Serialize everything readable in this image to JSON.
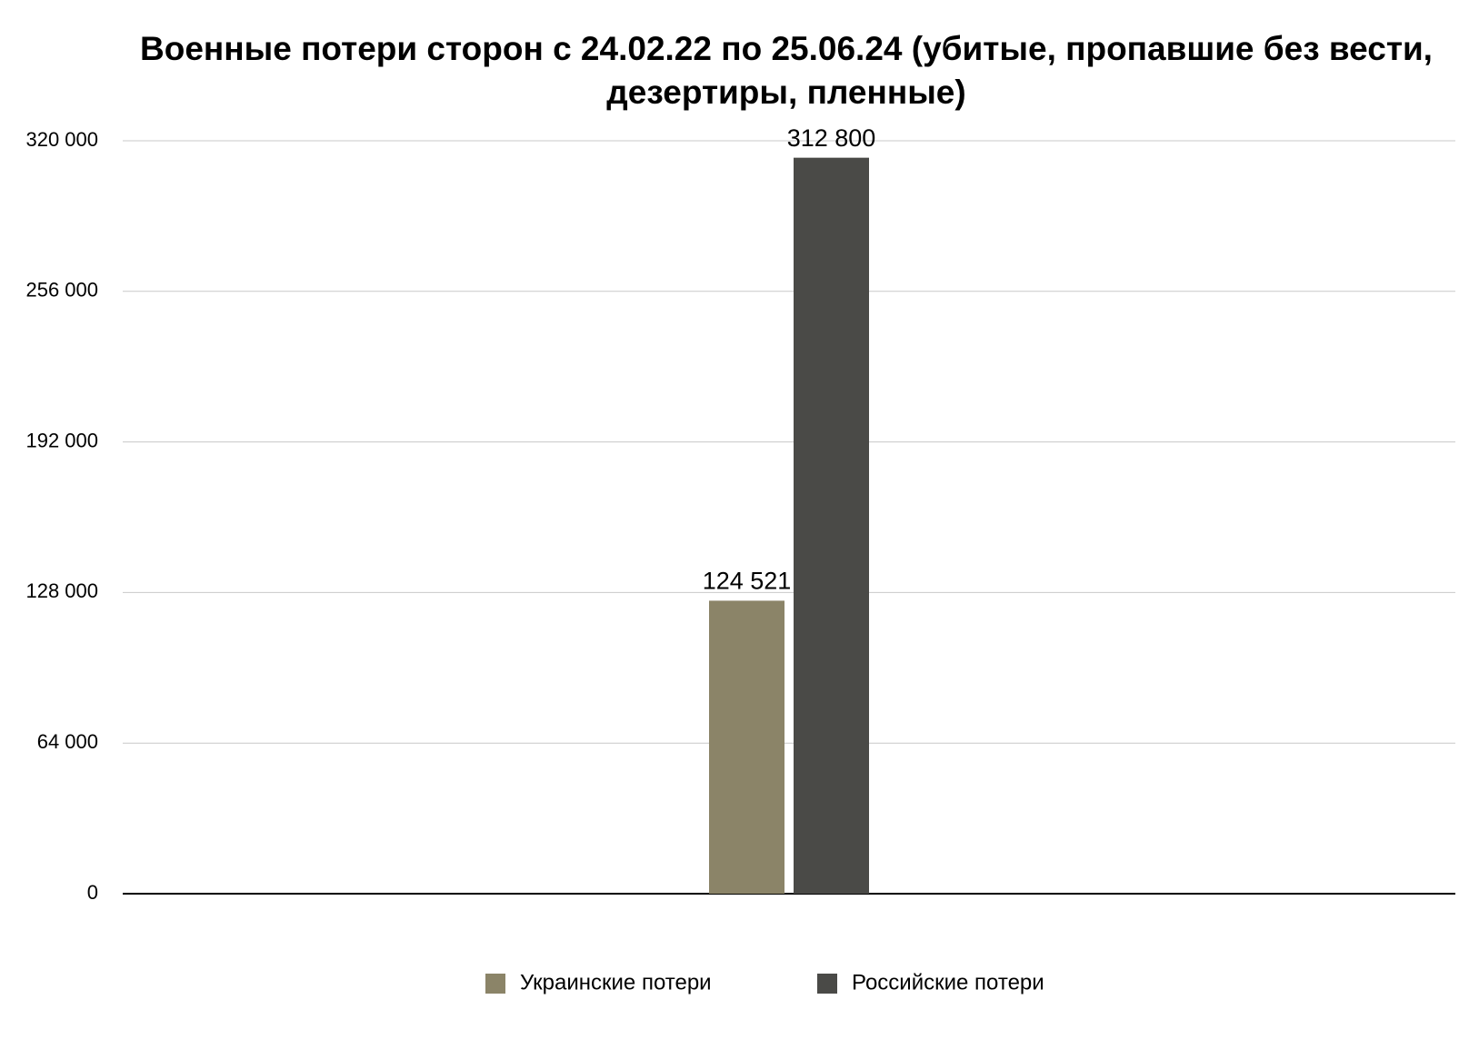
{
  "chart_data": {
    "type": "bar",
    "title": "Военные потери сторон с 24.02.22 по 25.06.24 (убитые, пропавшие без вести, дезертиры, пленные)",
    "categories": [
      null
    ],
    "series": [
      {
        "name": "Украинские потери",
        "color": "#8b8468",
        "values": [
          124521
        ],
        "value_labels": [
          "124 521"
        ]
      },
      {
        "name": "Российские потери",
        "color": "#4a4a47",
        "values": [
          312800
        ],
        "value_labels": [
          "312 800"
        ]
      }
    ],
    "ylim": [
      0,
      320000
    ],
    "yticks": [
      0,
      {
        "value": 64000,
        "label": "64 000"
      },
      {
        "value": 128000,
        "label": "128 000"
      },
      {
        "value": 192000,
        "label": "192 000"
      },
      {
        "value": 256000,
        "label": "256 000"
      },
      {
        "value": 320000,
        "label": "320 000"
      }
    ],
    "grid": true,
    "legend": "bottom"
  }
}
